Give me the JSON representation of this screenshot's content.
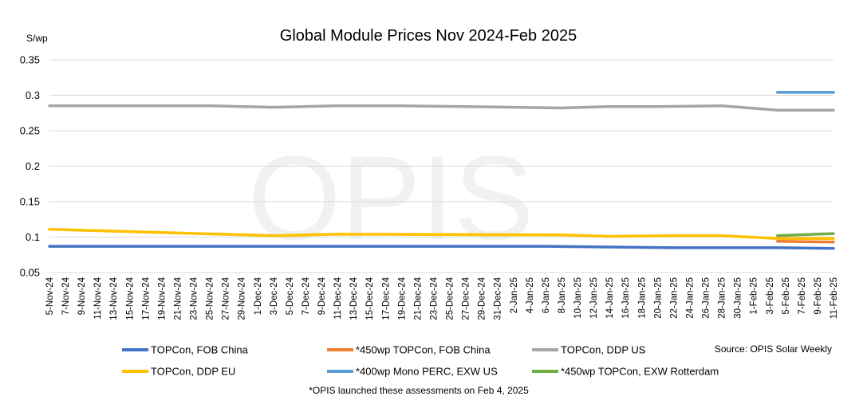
{
  "chart_data": {
    "type": "line",
    "title": "Global Module Prices Nov 2024-Feb 2025",
    "ylabel": "S/wp",
    "ylim": [
      0.05,
      0.35
    ],
    "yticks": [
      "0.05",
      "0.1",
      "0.15",
      "0.2",
      "0.25",
      "0.3",
      "0.35"
    ],
    "grid": true,
    "legend_position": "bottom",
    "watermark": "OPIS",
    "source": "Source: OPIS Solar Weekly",
    "footnote": "*OPIS launched these assessments on Feb 4, 2025",
    "categories": [
      "5-Nov-24",
      "7-Nov-24",
      "9-Nov-24",
      "11-Nov-24",
      "13-Nov-24",
      "15-Nov-24",
      "17-Nov-24",
      "19-Nov-24",
      "21-Nov-24",
      "23-Nov-24",
      "25-Nov-24",
      "27-Nov-24",
      "29-Nov-24",
      "1-Dec-24",
      "3-Dec-24",
      "5-Dec-24",
      "7-Dec-24",
      "9-Dec-24",
      "11-Dec-24",
      "13-Dec-24",
      "15-Dec-24",
      "17-Dec-24",
      "19-Dec-24",
      "21-Dec-24",
      "23-Dec-24",
      "25-Dec-24",
      "27-Dec-24",
      "29-Dec-24",
      "31-Dec-24",
      "2-Jan-25",
      "4-Jan-25",
      "6-Jan-25",
      "8-Jan-25",
      "10-Jan-25",
      "12-Jan-25",
      "14-Jan-25",
      "16-Jan-25",
      "18-Jan-25",
      "20-Jan-25",
      "22-Jan-25",
      "24-Jan-25",
      "26-Jan-25",
      "28-Jan-25",
      "30-Jan-25",
      "1-Feb-25",
      "3-Feb-25",
      "5-Feb-25",
      "7-Feb-25",
      "9-Feb-25",
      "11-Feb-25"
    ],
    "series": [
      {
        "name": "TOPCon, FOB China",
        "color": "#4472c4",
        "points": [
          [
            "5-Nov-24",
            0.087
          ],
          [
            "11-Dec-24",
            0.087
          ],
          [
            "6-Jan-25",
            0.087
          ],
          [
            "14-Jan-25",
            0.086
          ],
          [
            "22-Jan-25",
            0.085
          ],
          [
            "4-Feb-25",
            0.085
          ],
          [
            "11-Feb-25",
            0.084
          ]
        ]
      },
      {
        "name": "*450wp TOPCon, FOB China",
        "color": "#ed7d31",
        "points": [
          [
            "4-Feb-25",
            0.094
          ],
          [
            "11-Feb-25",
            0.093
          ]
        ]
      },
      {
        "name": "TOPCon, DDP US",
        "color": "#a5a5a5",
        "points": [
          [
            "5-Nov-24",
            0.285
          ],
          [
            "25-Nov-24",
            0.285
          ],
          [
            "3-Dec-24",
            0.283
          ],
          [
            "11-Dec-24",
            0.285
          ],
          [
            "19-Dec-24",
            0.285
          ],
          [
            "27-Dec-24",
            0.284
          ],
          [
            "8-Jan-25",
            0.282
          ],
          [
            "14-Jan-25",
            0.284
          ],
          [
            "20-Jan-25",
            0.284
          ],
          [
            "28-Jan-25",
            0.285
          ],
          [
            "4-Feb-25",
            0.279
          ],
          [
            "11-Feb-25",
            0.279
          ]
        ]
      },
      {
        "name": "TOPCon, DDP EU",
        "color": "#ffc000",
        "points": [
          [
            "5-Nov-24",
            0.111
          ],
          [
            "17-Nov-24",
            0.107
          ],
          [
            "3-Dec-24",
            0.102
          ],
          [
            "11-Dec-24",
            0.104
          ],
          [
            "8-Jan-25",
            0.103
          ],
          [
            "14-Jan-25",
            0.101
          ],
          [
            "22-Jan-25",
            0.102
          ],
          [
            "28-Jan-25",
            0.102
          ],
          [
            "4-Feb-25",
            0.098
          ],
          [
            "11-Feb-25",
            0.098
          ]
        ]
      },
      {
        "name": "*400wp Mono PERC, EXW US",
        "color": "#5b9bd5",
        "points": [
          [
            "4-Feb-25",
            0.304
          ],
          [
            "11-Feb-25",
            0.304
          ]
        ]
      },
      {
        "name": "*450wp TOPCon, EXW Rotterdam",
        "color": "#70ad47",
        "points": [
          [
            "4-Feb-25",
            0.102
          ],
          [
            "11-Feb-25",
            0.105
          ]
        ]
      }
    ]
  }
}
